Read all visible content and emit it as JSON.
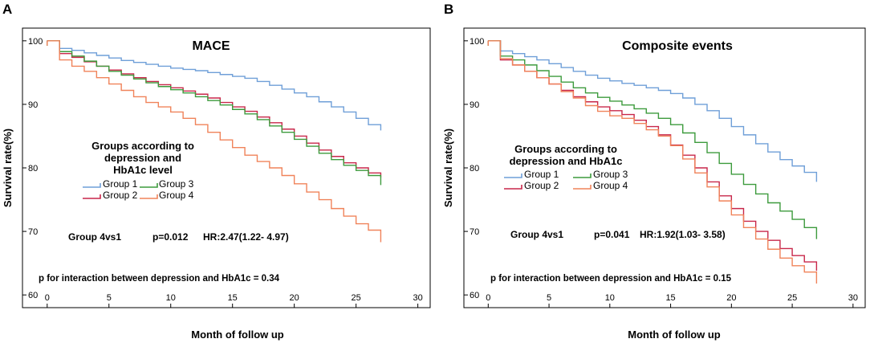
{
  "chart_data": [
    {
      "panel": "A",
      "type": "line",
      "step": true,
      "title": "MACE",
      "xlabel": "Month of follow up",
      "ylabel": "Survival rate(%)",
      "xlim": [
        -2,
        31
      ],
      "ylim": [
        58,
        102
      ],
      "xticks": [
        0,
        5,
        10,
        15,
        20,
        25,
        30
      ],
      "yticks": [
        60,
        70,
        80,
        90,
        100
      ],
      "legend_title": [
        "Groups according to",
        "depression and",
        "HbA1c level"
      ],
      "annotation": {
        "group": "Group 4vs1",
        "p": "p=0.012",
        "hr": "HR:2.47(1.22- 4.97)"
      },
      "interaction": "p for interaction between depression and HbA1c = 0.34",
      "series": [
        {
          "name": "Group 1",
          "color": "#6f9fd8",
          "x": [
            0,
            1,
            2,
            3,
            4,
            5,
            6,
            7,
            8,
            9,
            10,
            11,
            12,
            13,
            14,
            15,
            16,
            17,
            18,
            19,
            20,
            21,
            22,
            23,
            24,
            25,
            26,
            27
          ],
          "y": [
            100,
            98.8,
            98.5,
            98.1,
            97.7,
            97.3,
            96.9,
            96.6,
            96.3,
            96,
            95.7,
            95.5,
            95.3,
            95,
            94.7,
            94.4,
            94.1,
            93.6,
            93,
            92.4,
            91.8,
            91.2,
            90.4,
            89.6,
            88.8,
            87.8,
            86.8,
            85.9
          ]
        },
        {
          "name": "Group 2",
          "color": "#c8274a",
          "x": [
            0,
            1,
            2,
            3,
            4,
            5,
            6,
            7,
            8,
            9,
            10,
            11,
            12,
            13,
            14,
            15,
            16,
            17,
            18,
            19,
            20,
            21,
            22,
            23,
            24,
            25,
            26,
            27
          ],
          "y": [
            100,
            98,
            97.4,
            96.7,
            96,
            95.4,
            94.8,
            94.2,
            93.6,
            93.1,
            92.6,
            92.1,
            91.6,
            91,
            90.3,
            89.6,
            88.9,
            88,
            87.1,
            86.1,
            85,
            83.9,
            82.8,
            81.8,
            80.8,
            80,
            79.2,
            78.5
          ]
        },
        {
          "name": "Group 3",
          "color": "#3d9b3d",
          "x": [
            0,
            1,
            2,
            3,
            4,
            5,
            6,
            7,
            8,
            9,
            10,
            11,
            12,
            13,
            14,
            15,
            16,
            17,
            18,
            19,
            20,
            21,
            22,
            23,
            24,
            25,
            26,
            27
          ],
          "y": [
            100,
            98.3,
            97.6,
            96.8,
            96,
            95.2,
            94.6,
            94,
            93.4,
            92.8,
            92.3,
            91.8,
            91.2,
            90.6,
            89.9,
            89.2,
            88.5,
            87.6,
            86.6,
            85.6,
            84.5,
            83.4,
            82.3,
            81.3,
            80.4,
            79.6,
            78.8,
            77.3
          ]
        },
        {
          "name": "Group 4",
          "color": "#f0835a",
          "x": [
            0,
            1,
            2,
            3,
            4,
            5,
            6,
            7,
            8,
            9,
            10,
            11,
            12,
            13,
            14,
            15,
            16,
            17,
            18,
            19,
            20,
            21,
            22,
            23,
            24,
            25,
            26,
            27
          ],
          "y": [
            100,
            97,
            96,
            95.2,
            94.2,
            93.2,
            92.2,
            91.2,
            90.3,
            89.6,
            88.8,
            87.8,
            86.8,
            85.6,
            84.4,
            83.2,
            82,
            81,
            80,
            78.8,
            77.5,
            76.2,
            75,
            73.6,
            72.4,
            71.2,
            70.2,
            68.3
          ]
        }
      ]
    },
    {
      "panel": "B",
      "type": "line",
      "step": true,
      "title": "Composite events",
      "xlabel": "Month of follow up",
      "ylabel": "Survival rate(%)",
      "xlim": [
        -2,
        31
      ],
      "ylim": [
        58,
        102
      ],
      "xticks": [
        0,
        5,
        10,
        15,
        20,
        25,
        30
      ],
      "yticks": [
        60,
        70,
        80,
        90,
        100
      ],
      "legend_title": [
        "Groups according to",
        "depression and HbA1c"
      ],
      "annotation": {
        "group": "Group 4vs1",
        "p": "p=0.041",
        "hr": "HR:1.92(1.03- 3.58)"
      },
      "interaction": "p for interaction between depression and HbA1c = 0.15",
      "series": [
        {
          "name": "Group 1",
          "color": "#6f9fd8",
          "x": [
            0,
            1,
            2,
            3,
            4,
            5,
            6,
            7,
            8,
            9,
            10,
            11,
            12,
            13,
            14,
            15,
            16,
            17,
            18,
            19,
            20,
            21,
            22,
            23,
            24,
            25,
            26,
            27
          ],
          "y": [
            100,
            98.4,
            98,
            97.5,
            97,
            96.4,
            95.8,
            95.2,
            94.6,
            94.1,
            93.7,
            93.3,
            93,
            92.6,
            92.2,
            91.7,
            91,
            90,
            89,
            87.8,
            86.5,
            85.2,
            83.8,
            82.5,
            81.3,
            80.3,
            79.3,
            77.8
          ]
        },
        {
          "name": "Group 2",
          "color": "#c8274a",
          "x": [
            0,
            1,
            2,
            3,
            4,
            5,
            6,
            7,
            8,
            9,
            10,
            11,
            12,
            13,
            14,
            15,
            16,
            17,
            18,
            19,
            20,
            21,
            22,
            23,
            24,
            25,
            26,
            27
          ],
          "y": [
            100,
            97,
            96.2,
            95.2,
            94.2,
            93.2,
            92.2,
            91.2,
            90.4,
            89.6,
            89,
            88.4,
            87.5,
            86.5,
            85.2,
            83.6,
            82,
            80,
            77.8,
            75.6,
            73.6,
            71.6,
            70,
            68.6,
            67.3,
            66.2,
            65.2,
            63.8
          ]
        },
        {
          "name": "Group 3",
          "color": "#3d9b3d",
          "x": [
            0,
            1,
            2,
            3,
            4,
            5,
            6,
            7,
            8,
            9,
            10,
            11,
            12,
            13,
            14,
            15,
            16,
            17,
            18,
            19,
            20,
            21,
            22,
            23,
            24,
            25,
            26,
            27
          ],
          "y": [
            100,
            97.6,
            97,
            96.2,
            95.3,
            94.4,
            93.5,
            92.6,
            91.8,
            91.1,
            90.5,
            89.9,
            89.3,
            88.6,
            87.8,
            86.8,
            85.5,
            84,
            82.4,
            80.7,
            79,
            77.4,
            75.9,
            74.5,
            73.2,
            71.9,
            70.6,
            68.8
          ]
        },
        {
          "name": "Group 4",
          "color": "#f0835a",
          "x": [
            0,
            1,
            2,
            3,
            4,
            5,
            6,
            7,
            8,
            9,
            10,
            11,
            12,
            13,
            14,
            15,
            16,
            17,
            18,
            19,
            20,
            21,
            22,
            23,
            24,
            25,
            26,
            27
          ],
          "y": [
            100,
            97.2,
            96.2,
            95.2,
            94.2,
            93.2,
            92,
            91,
            89.8,
            88.9,
            88.2,
            87.8,
            87,
            86,
            85,
            83.5,
            81.4,
            79.2,
            77,
            74.8,
            72.6,
            70.6,
            68.8,
            67.2,
            65.8,
            64.6,
            63.6,
            61.8
          ]
        }
      ]
    }
  ]
}
